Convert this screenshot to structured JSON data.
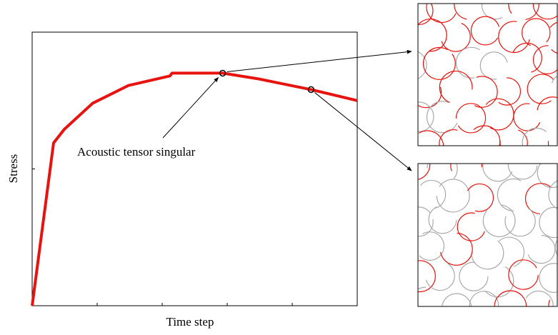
{
  "chart_data": {
    "type": "line",
    "x_label": "Time step",
    "y_label": "Stress",
    "x": [
      0,
      0.33,
      0.495,
      0.93,
      1.48,
      2.12,
      2.15,
      2.47,
      2.93,
      3.46,
      4.29,
      5
    ],
    "values": [
      0,
      1.19,
      1.29,
      1.48,
      1.61,
      1.68,
      1.7,
      1.7,
      1.7,
      1.66,
      1.58,
      1.5
    ],
    "color": "#e8130f",
    "xlim": [
      0,
      5
    ],
    "ylim": [
      0,
      2
    ],
    "xticks": [
      0,
      1,
      2,
      3,
      4,
      5
    ],
    "yticks": [
      0,
      1,
      2
    ],
    "markers": [
      {
        "x": 2.93,
        "y": 1.7
      },
      {
        "x": 4.29,
        "y": 1.58
      }
    ],
    "annotation": "Acoustic tensor singular"
  }
}
